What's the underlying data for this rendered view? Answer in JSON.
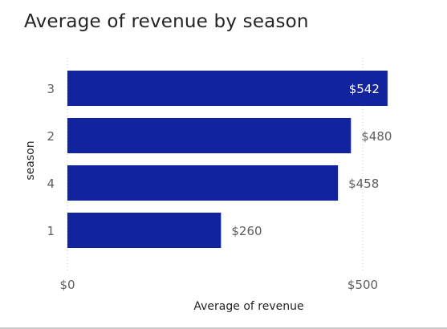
{
  "chart_data": {
    "type": "bar",
    "orientation": "horizontal",
    "title": "Average of revenue by season",
    "xlabel": "Average of revenue",
    "ylabel": "season",
    "categories": [
      "3",
      "2",
      "4",
      "1"
    ],
    "values": [
      542,
      480,
      458,
      260
    ],
    "data_labels": [
      "$542",
      "$480",
      "$458",
      "$260"
    ],
    "x_ticks": [
      0,
      500
    ],
    "x_tick_labels": [
      "$0",
      "$500"
    ],
    "xlim": [
      0,
      550
    ],
    "grid": true,
    "legend": "none",
    "bar_color": "#12239E",
    "label_inside_color": "#FFFFFF",
    "label_outside_color": "#605E5C"
  }
}
